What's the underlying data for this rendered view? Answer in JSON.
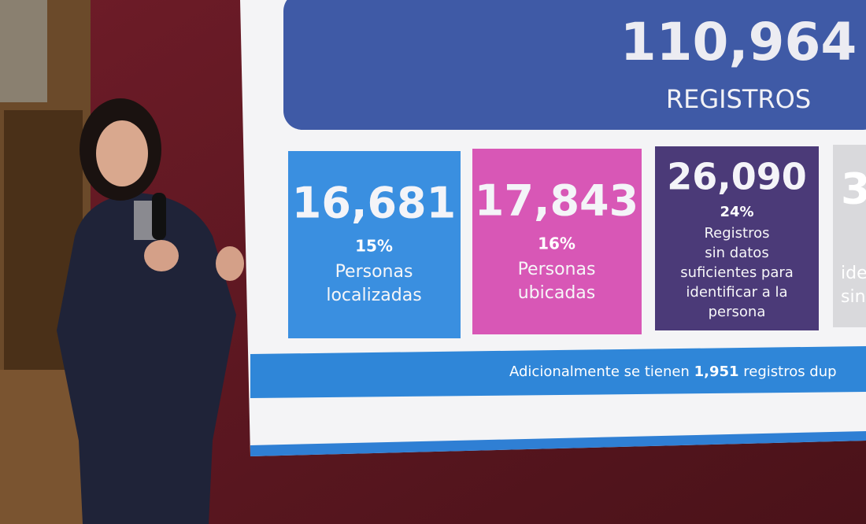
{
  "header": {
    "total": "110,964",
    "label": "REGISTROS"
  },
  "cards": [
    {
      "number": "16,681",
      "percent": "15%",
      "lines": [
        "Personas",
        "localizadas"
      ]
    },
    {
      "number": "17,843",
      "percent": "16%",
      "lines": [
        "Personas",
        "ubicadas"
      ]
    },
    {
      "number": "26,090",
      "percent": "24%",
      "lines": [
        "Registros",
        "sin datos",
        "suficientes para",
        "identificar a la",
        "persona"
      ]
    },
    {
      "number": "3",
      "lines": [
        "ide",
        "sin"
      ]
    }
  ],
  "footer": {
    "before": "Adicionalmente se tienen",
    "number": "1,951",
    "after": "registros dup"
  }
}
